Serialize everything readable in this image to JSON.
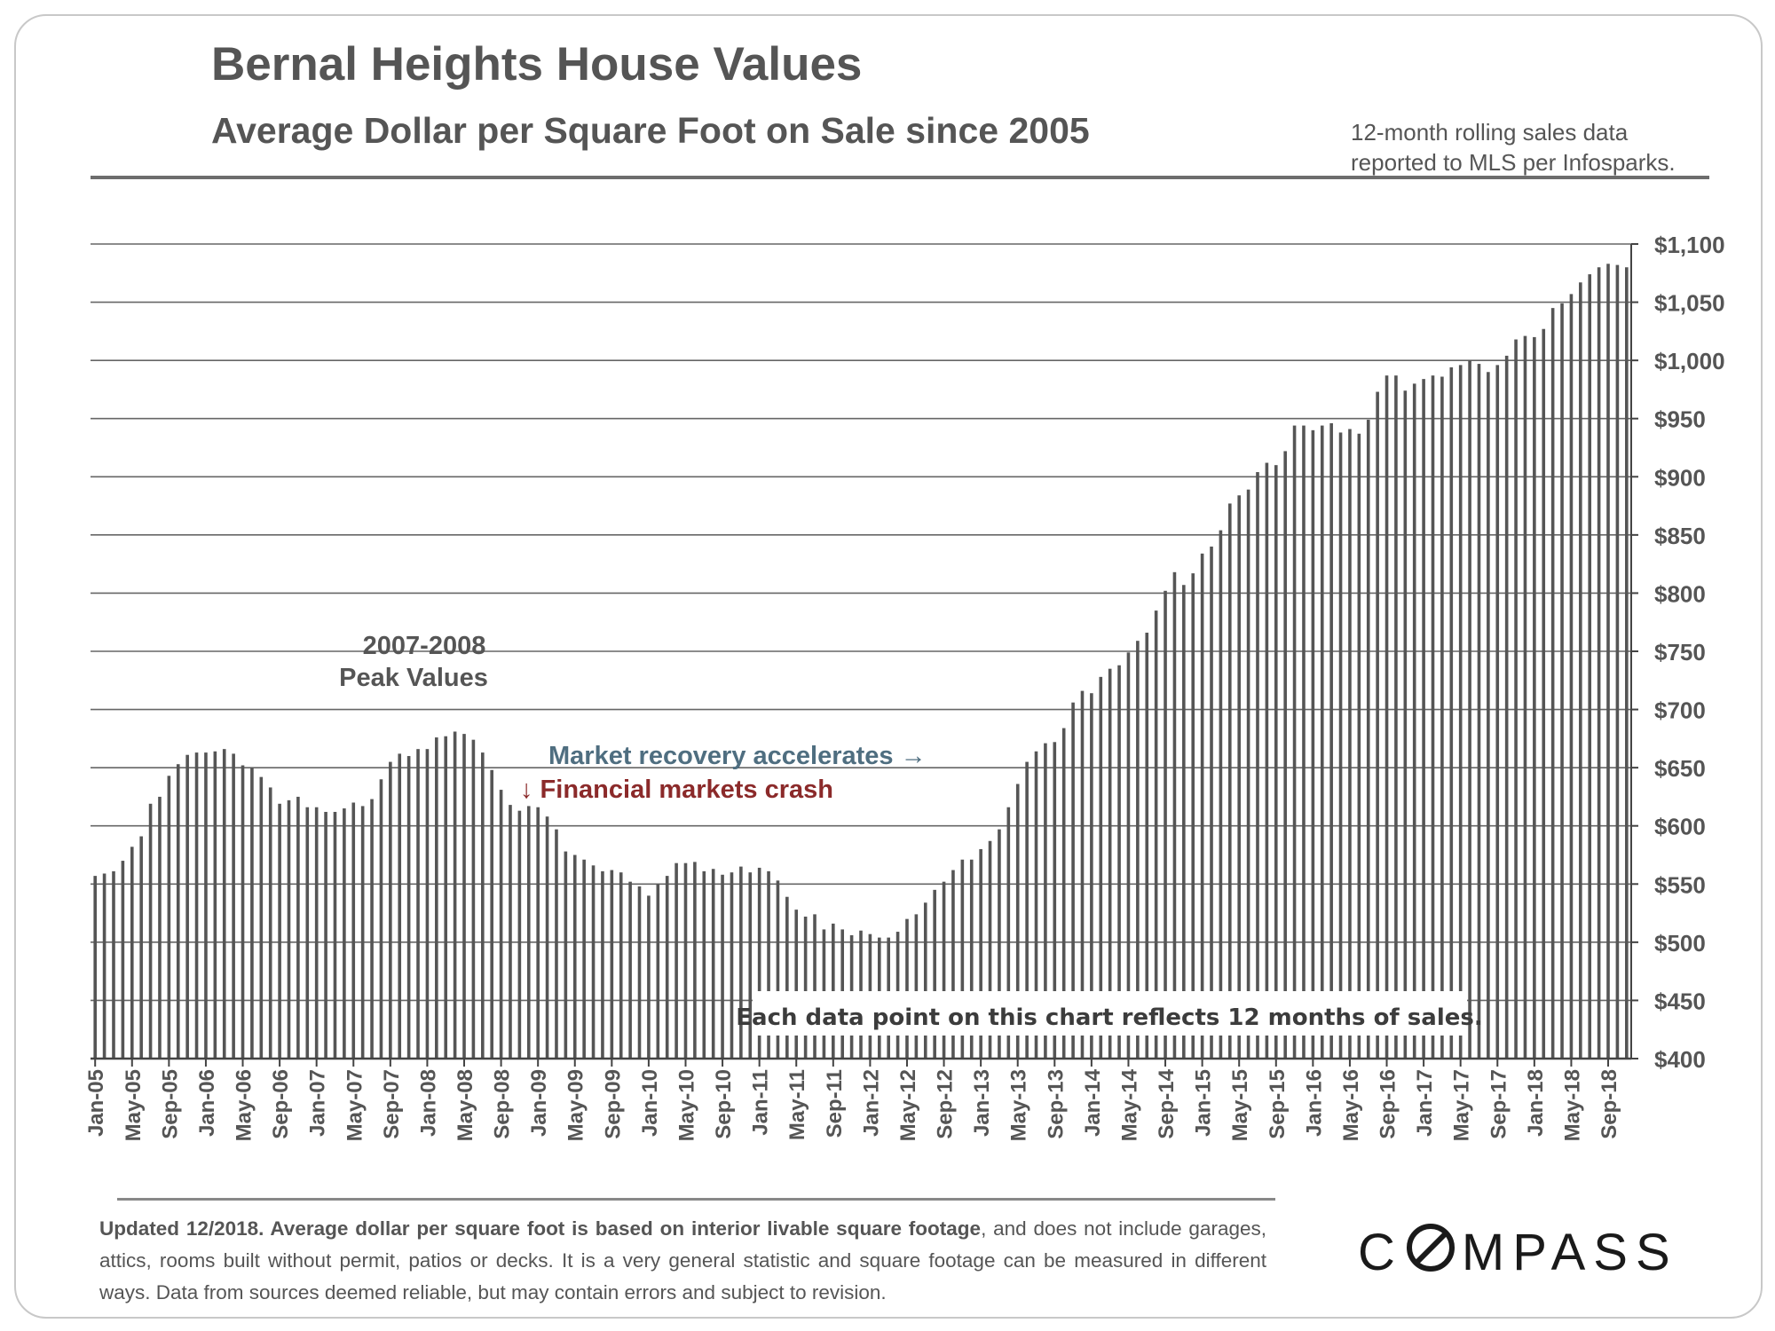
{
  "header": {
    "title": "Bernal Heights House Values",
    "subtitle": "Average Dollar per Square Foot on Sale since 2005",
    "source_line1": "12-month rolling sales data",
    "source_line2": "reported to MLS per Infosparks."
  },
  "annotations": {
    "peak_line1": "2007-2008",
    "peak_line2": "Peak Values",
    "recovery": "Market recovery accelerates →",
    "crash": "↓ Financial markets crash",
    "note": "Each data point on this chart reflects 12 months of sales."
  },
  "footer": {
    "bold": "Updated 12/2018. Average dollar per square foot is based on interior livable square footage",
    "rest": ", and does not include garages, attics, rooms built without permit, patios or decks. It is a very general statistic and square footage can be measured in different ways. Data from sources deemed reliable, but may contain errors and subject to revision."
  },
  "logo": {
    "before": "C",
    "after": "MPASS"
  },
  "colors": {
    "bar": "#555555",
    "grid": "#666666",
    "recovery": "#4f6e80",
    "crash": "#8b2a2a",
    "text": "#555555"
  },
  "chart_data": {
    "type": "bar",
    "ylim": [
      400,
      1100
    ],
    "yticks": [
      400,
      450,
      500,
      550,
      600,
      650,
      700,
      750,
      800,
      850,
      900,
      950,
      1000,
      1050,
      1100
    ],
    "ytick_labels": [
      "$400",
      "$450",
      "$500",
      "$550",
      "$600",
      "$650",
      "$700",
      "$750",
      "$800",
      "$850",
      "$900",
      "$950",
      "$1,000",
      "$1,050",
      "$1,100"
    ],
    "xtick_labels": [
      "Jan-05",
      "May-05",
      "Sep-05",
      "Jan-06",
      "May-06",
      "Sep-06",
      "Jan-07",
      "May-07",
      "Sep-07",
      "Jan-08",
      "May-08",
      "Sep-08",
      "Jan-09",
      "May-09",
      "Sep-09",
      "Jan-10",
      "May-10",
      "Sep-10",
      "Jan-11",
      "May-11",
      "Sep-11",
      "Jan-12",
      "May-12",
      "Sep-12",
      "Jan-13",
      "May-13",
      "Sep-13",
      "Jan-14",
      "May-14",
      "Sep-14",
      "Jan-15",
      "May-15",
      "Sep-15",
      "Jan-16",
      "May-16",
      "Sep-16",
      "Jan-17",
      "May-17",
      "Sep-17",
      "Jan-18",
      "May-18",
      "Sep-18"
    ],
    "start": "Jan-05",
    "end": "Nov-18",
    "values": [
      557,
      559,
      561,
      570,
      582,
      591,
      619,
      625,
      643,
      653,
      661,
      663,
      663,
      664,
      666,
      662,
      652,
      650,
      642,
      633,
      619,
      622,
      625,
      616,
      616,
      612,
      612,
      615,
      620,
      617,
      623,
      640,
      655,
      662,
      660,
      666,
      666,
      676,
      677,
      681,
      679,
      674,
      663,
      648,
      631,
      618,
      613,
      617,
      616,
      608,
      597,
      578,
      575,
      571,
      566,
      561,
      562,
      560,
      552,
      548,
      540,
      550,
      557,
      568,
      568,
      569,
      561,
      563,
      558,
      560,
      565,
      560,
      564,
      561,
      553,
      539,
      528,
      522,
      524,
      511,
      516,
      511,
      506,
      510,
      507,
      504,
      504,
      509,
      520,
      524,
      534,
      545,
      552,
      562,
      571,
      571,
      580,
      587,
      597,
      616,
      636,
      655,
      664,
      671,
      672,
      684,
      706,
      716,
      714,
      728,
      735,
      738,
      749,
      759,
      766,
      785,
      802,
      818,
      807,
      817,
      834,
      840,
      854,
      877,
      884,
      889,
      904,
      912,
      910,
      922,
      944,
      944,
      940,
      944,
      946,
      938,
      941,
      937,
      949,
      973,
      987,
      987,
      974,
      980,
      984,
      987,
      986,
      994,
      996,
      1000,
      997,
      990,
      996,
      1004,
      1018,
      1021,
      1020,
      1027,
      1045,
      1049,
      1057,
      1067,
      1074,
      1080,
      1083,
      1082,
      1080
    ]
  }
}
